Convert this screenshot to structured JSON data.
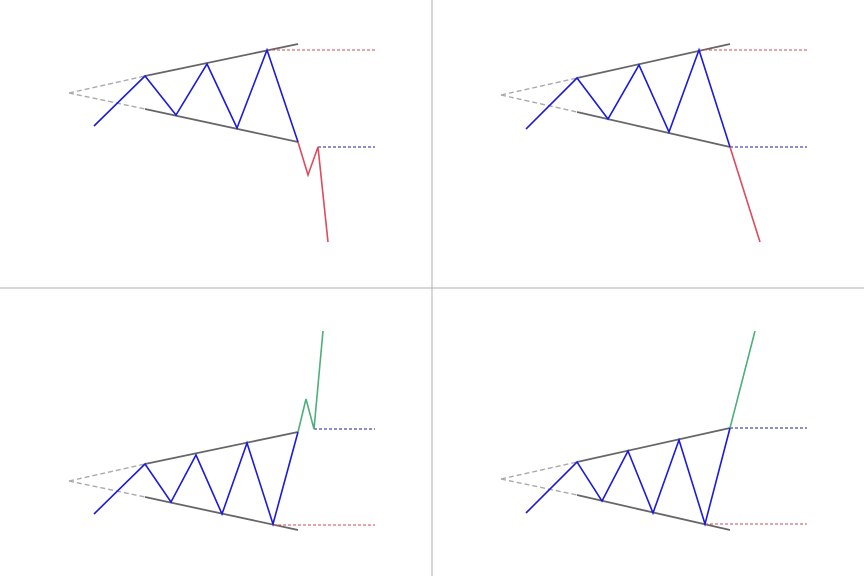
{
  "colors": {
    "background": "#ffffff",
    "divider": "#b0b0b0",
    "trendline": "#666666",
    "projection": "#aaaaaa",
    "price": "#1a1adb",
    "breakdown": "#dd4b5e",
    "breakout": "#4daf7c",
    "level_red": "#d04a5a",
    "level_blue": "#1a1a9e"
  },
  "panels": [
    {
      "id": "top-left",
      "pattern": "expanding-wedge",
      "outcome": "breakdown-with-retest",
      "phase": "consolidation-then-decline"
    },
    {
      "id": "top-right",
      "pattern": "expanding-wedge",
      "outcome": "direct-breakdown",
      "phase": "consolidation-then-decline"
    },
    {
      "id": "bottom-left",
      "pattern": "expanding-wedge",
      "outcome": "breakout-with-retest",
      "phase": "consolidation-then-rally"
    },
    {
      "id": "bottom-right",
      "pattern": "expanding-wedge",
      "outcome": "direct-breakout",
      "phase": "consolidation-then-rally"
    }
  ]
}
